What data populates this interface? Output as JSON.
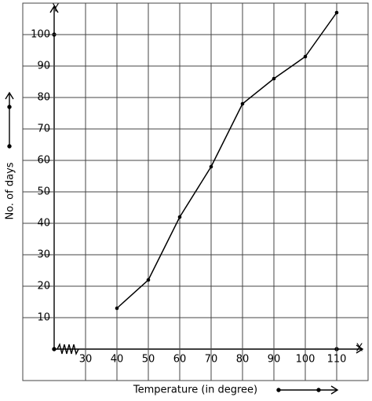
{
  "chart_data": {
    "type": "line",
    "x_label": "Temperature (in degree)",
    "y_label": "No. of days",
    "x_axis_name": "X",
    "y_axis_name": "Y",
    "x": [
      40,
      50,
      60,
      70,
      80,
      90,
      100,
      110
    ],
    "series": [
      {
        "color": "#000000",
        "values": [
          13,
          22,
          42,
          58,
          78,
          86,
          93,
          107
        ]
      }
    ],
    "xlim": [
      20,
      120
    ],
    "ylim": [
      0,
      110
    ],
    "xticks": [
      30,
      40,
      50,
      60,
      70,
      80,
      90,
      100,
      110
    ],
    "yticks": [
      10,
      20,
      30,
      40,
      50,
      60,
      70,
      80,
      90,
      100
    ],
    "grid": true
  }
}
